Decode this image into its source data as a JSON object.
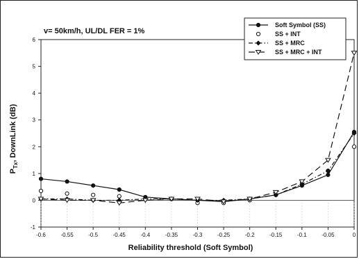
{
  "chart_data": {
    "type": "line",
    "subtitle": "v= 50km/h, UL/DL FER = 1%",
    "ylabel_main": "P",
    "ylabel_sub": "Tx",
    "ylabel_rest": ", DownLink (dB)",
    "xlabel": "Reliability threshold (Soft Symbol)",
    "xlim": [
      -0.6,
      0
    ],
    "ylim": [
      -1,
      6
    ],
    "x_ticks": [
      -0.6,
      -0.55,
      -0.5,
      -0.45,
      -0.4,
      -0.35,
      -0.3,
      -0.25,
      -0.2,
      -0.15,
      -0.1,
      -0.05,
      0
    ],
    "x_tick_labels": [
      "-0.6",
      "-0.55",
      "-0.5",
      "-0.45",
      "-0.4",
      "-0.35",
      "-0.3",
      "-0.25",
      "-0.2",
      "-0.15",
      "-0.1",
      "-0.05",
      "0"
    ],
    "y_ticks": [
      -1,
      0,
      1,
      2,
      3,
      4,
      5,
      6
    ],
    "y_tick_labels": [
      "-1",
      "0",
      "1",
      "2",
      "3",
      "4",
      "5",
      "6"
    ],
    "grid": false,
    "legend_position": "top-right",
    "series": [
      {
        "name": "Soft Symbol (SS)",
        "marker": "filled-circle",
        "dash": "solid",
        "color": "#111111",
        "x": [
          -0.6,
          -0.55,
          -0.5,
          -0.45,
          -0.4,
          -0.35,
          -0.3,
          -0.25,
          -0.2,
          -0.15,
          -0.1,
          -0.05,
          0
        ],
        "y": [
          0.8,
          0.7,
          0.55,
          0.4,
          0.12,
          0.05,
          0.0,
          -0.05,
          0.05,
          0.2,
          0.55,
          0.95,
          2.55
        ]
      },
      {
        "name": "SS + INT",
        "marker": "open-circle",
        "dash": "none",
        "color": "#111111",
        "x": [
          -0.6,
          -0.55,
          -0.5,
          -0.45,
          -0.4,
          -0.35,
          -0.3,
          -0.25,
          -0.2,
          -0.15,
          -0.1,
          -0.05,
          0
        ],
        "y": [
          0.35,
          0.25,
          0.2,
          0.15,
          0.05,
          0.05,
          -0.1,
          -0.1,
          0.0,
          0.2,
          0.6,
          1.1,
          2.0
        ]
      },
      {
        "name": "SS + MRC",
        "marker": "filled-diamond",
        "dash": "dash-dot",
        "color": "#111111",
        "x": [
          -0.6,
          -0.55,
          -0.5,
          -0.45,
          -0.4,
          -0.35,
          -0.3,
          -0.25,
          -0.2,
          -0.15,
          -0.1,
          -0.05,
          0
        ],
        "y": [
          0.05,
          0.05,
          0.0,
          0.0,
          0.05,
          0.05,
          0.0,
          0.0,
          0.05,
          0.2,
          0.6,
          1.1,
          2.5
        ]
      },
      {
        "name": "SS + MRC + INT",
        "marker": "open-triangle-down",
        "dash": "long-dash",
        "color": "#111111",
        "x": [
          -0.6,
          -0.55,
          -0.5,
          -0.45,
          -0.4,
          -0.35,
          -0.3,
          -0.25,
          -0.2,
          -0.15,
          -0.1,
          -0.05,
          0
        ],
        "y": [
          0.05,
          0.0,
          0.0,
          -0.1,
          0.0,
          0.05,
          0.05,
          -0.05,
          0.05,
          0.3,
          0.7,
          1.5,
          5.5
        ]
      }
    ]
  }
}
